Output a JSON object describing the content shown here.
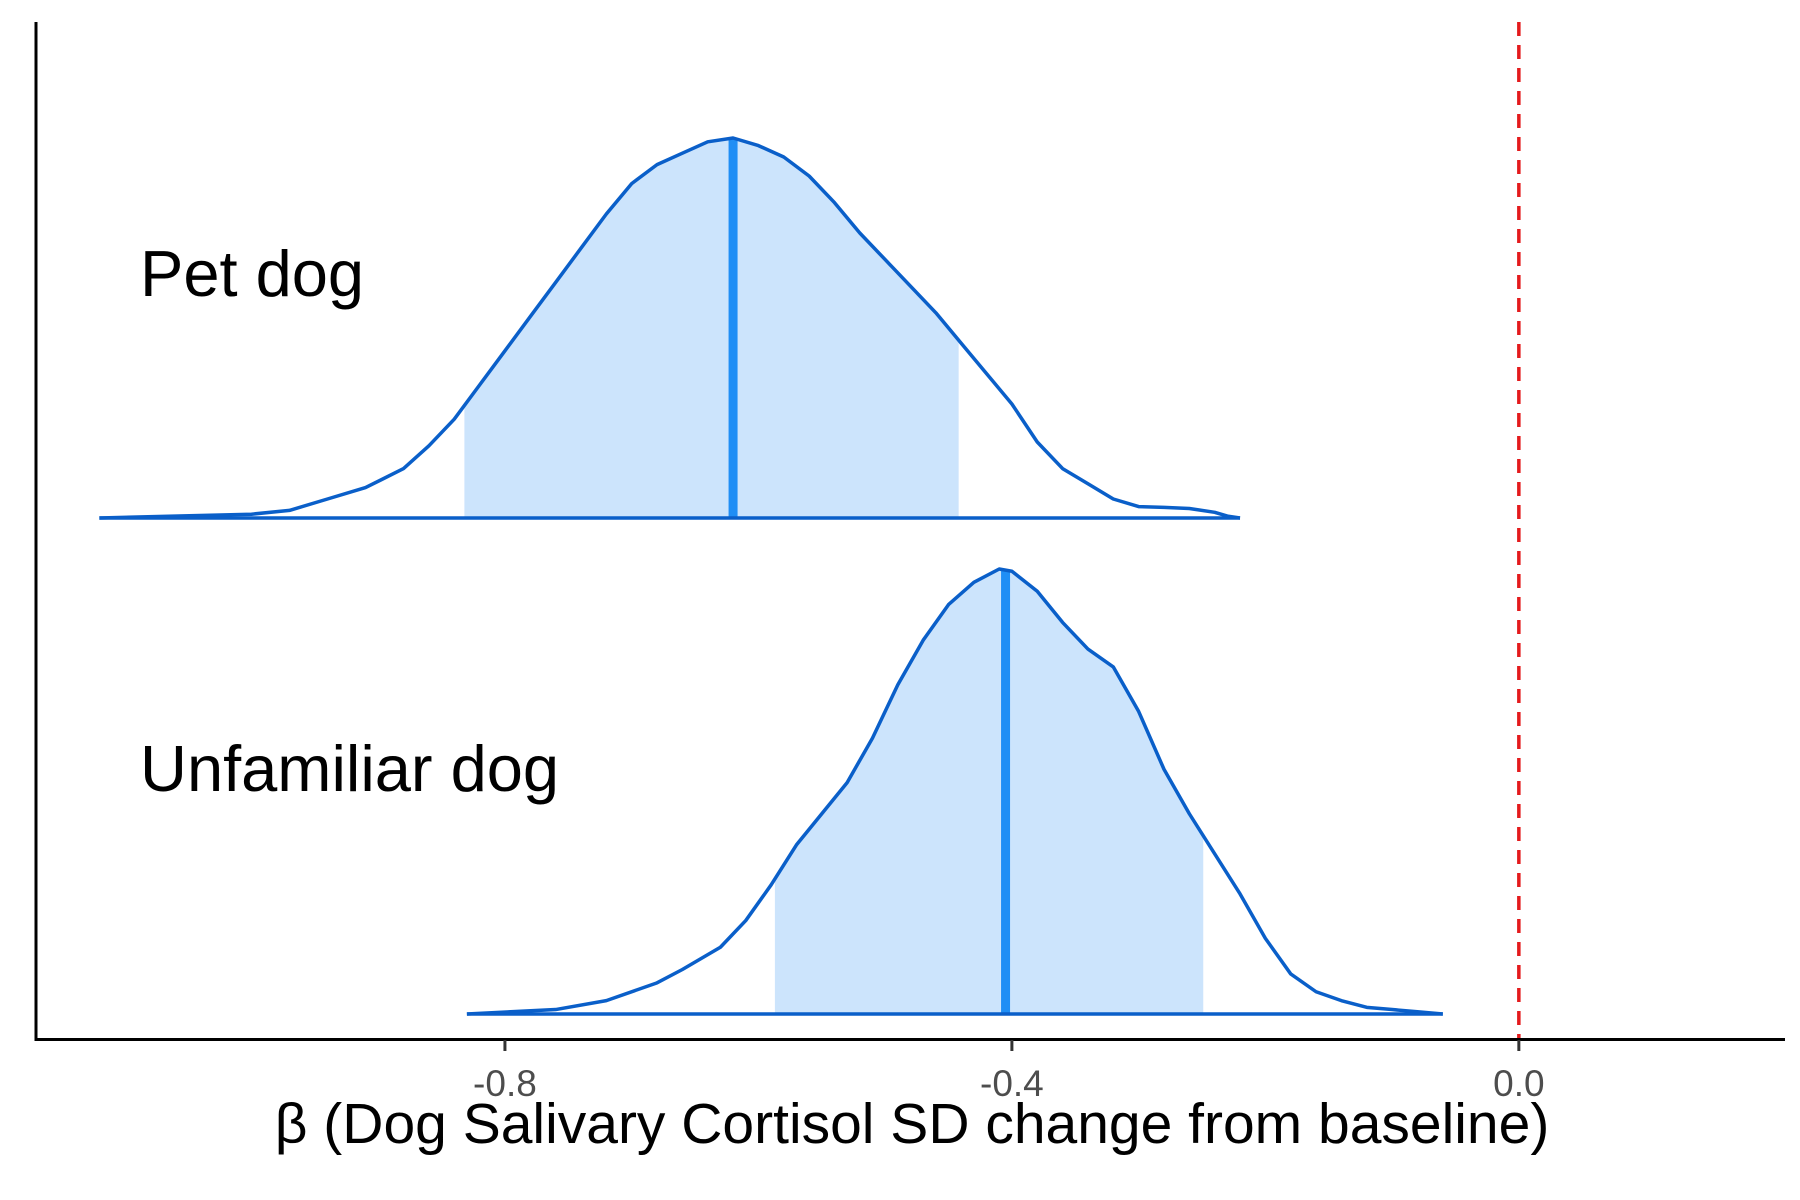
{
  "chart_data": {
    "type": "area",
    "xlabel": "β (Dog Salivary Cortisol SD change from baseline)",
    "ylabel": "",
    "xlim": [
      -1.17,
      0.21
    ],
    "xticks": [
      {
        "value": -0.8,
        "label": "-0.8"
      },
      {
        "value": -0.4,
        "label": "-0.4"
      },
      {
        "value": 0.0,
        "label": "0.0"
      }
    ],
    "reference_line": {
      "value": 0.0,
      "style": "dashed",
      "color": "#e41a1c"
    },
    "colors": {
      "outline": "#0a5fc9",
      "fill": "#cce4fc",
      "median": "#1f8ef5",
      "axis": "#000000"
    },
    "grid": false,
    "legend": "none",
    "series": [
      {
        "name": "Pet dog",
        "median": -0.62,
        "interval": [
          -0.832,
          -0.442
        ],
        "density": [
          [
            -1.12,
            0.0
          ],
          [
            -1.0,
            0.01
          ],
          [
            -0.97,
            0.02
          ],
          [
            -0.94,
            0.05
          ],
          [
            -0.91,
            0.08
          ],
          [
            -0.88,
            0.13
          ],
          [
            -0.86,
            0.19
          ],
          [
            -0.84,
            0.26
          ],
          [
            -0.82,
            0.35
          ],
          [
            -0.8,
            0.44
          ],
          [
            -0.78,
            0.53
          ],
          [
            -0.76,
            0.62
          ],
          [
            -0.74,
            0.71
          ],
          [
            -0.72,
            0.8
          ],
          [
            -0.7,
            0.88
          ],
          [
            -0.68,
            0.93
          ],
          [
            -0.66,
            0.96
          ],
          [
            -0.64,
            0.99
          ],
          [
            -0.62,
            1.0
          ],
          [
            -0.6,
            0.98
          ],
          [
            -0.58,
            0.95
          ],
          [
            -0.56,
            0.9
          ],
          [
            -0.54,
            0.83
          ],
          [
            -0.52,
            0.75
          ],
          [
            -0.5,
            0.68
          ],
          [
            -0.48,
            0.61
          ],
          [
            -0.46,
            0.54
          ],
          [
            -0.44,
            0.46
          ],
          [
            -0.42,
            0.38
          ],
          [
            -0.4,
            0.3
          ],
          [
            -0.38,
            0.2
          ],
          [
            -0.36,
            0.13
          ],
          [
            -0.34,
            0.09
          ],
          [
            -0.32,
            0.05
          ],
          [
            -0.3,
            0.03
          ],
          [
            -0.28,
            0.028
          ],
          [
            -0.26,
            0.025
          ],
          [
            -0.24,
            0.015
          ],
          [
            -0.23,
            0.005
          ],
          [
            -0.22,
            0.0
          ]
        ]
      },
      {
        "name": "Unfamiliar dog",
        "median": -0.405,
        "interval": [
          -0.587,
          -0.249
        ],
        "density": [
          [
            -0.83,
            0.0
          ],
          [
            -0.76,
            0.01
          ],
          [
            -0.72,
            0.03
          ],
          [
            -0.68,
            0.07
          ],
          [
            -0.66,
            0.1
          ],
          [
            -0.63,
            0.15
          ],
          [
            -0.61,
            0.21
          ],
          [
            -0.59,
            0.29
          ],
          [
            -0.57,
            0.38
          ],
          [
            -0.55,
            0.45
          ],
          [
            -0.53,
            0.52
          ],
          [
            -0.51,
            0.62
          ],
          [
            -0.49,
            0.74
          ],
          [
            -0.47,
            0.84
          ],
          [
            -0.45,
            0.92
          ],
          [
            -0.43,
            0.97
          ],
          [
            -0.41,
            1.0
          ],
          [
            -0.4,
            0.995
          ],
          [
            -0.38,
            0.95
          ],
          [
            -0.36,
            0.88
          ],
          [
            -0.34,
            0.82
          ],
          [
            -0.32,
            0.78
          ],
          [
            -0.3,
            0.68
          ],
          [
            -0.28,
            0.55
          ],
          [
            -0.26,
            0.45
          ],
          [
            -0.24,
            0.36
          ],
          [
            -0.22,
            0.27
          ],
          [
            -0.2,
            0.17
          ],
          [
            -0.18,
            0.09
          ],
          [
            -0.16,
            0.05
          ],
          [
            -0.14,
            0.03
          ],
          [
            -0.12,
            0.015
          ],
          [
            -0.1,
            0.01
          ],
          [
            -0.08,
            0.005
          ],
          [
            -0.06,
            0.0
          ]
        ]
      }
    ]
  }
}
